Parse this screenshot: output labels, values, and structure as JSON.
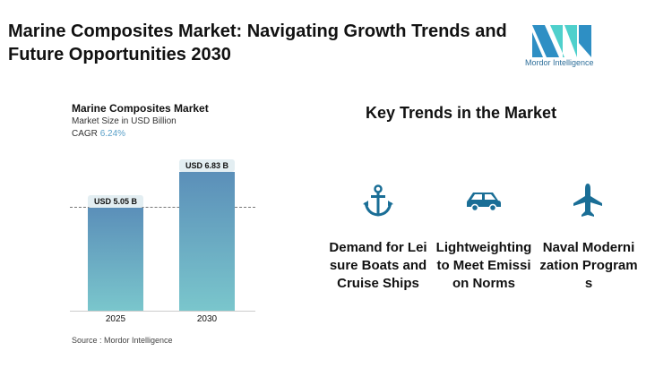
{
  "title": "Marine Composites Market: Navigating Growth Trends and Future Opportunities 2030",
  "logo": {
    "text": "Mordor Intelligence"
  },
  "chart_data": {
    "type": "bar",
    "title": "Marine Composites Market",
    "subtitle": "Market Size in USD Billion",
    "cagr_label": "CAGR",
    "cagr_value": "6.24%",
    "categories": [
      "2025",
      "2030"
    ],
    "values": [
      5.05,
      6.83
    ],
    "data_labels": [
      "USD 5.05 B",
      "USD 6.83 B"
    ],
    "ylim": [
      0,
      7.6
    ],
    "colors": [
      "#5b8fb9",
      "#7ac6cc"
    ]
  },
  "source": "Source : Mordor Intelligence",
  "trends": {
    "heading": "Key Trends in the Market",
    "items": [
      {
        "icon": "anchor-icon",
        "label": "Demand for Leisure Boats and Cruise Ships"
      },
      {
        "icon": "car-icon",
        "label": "Lightweighting to Meet Emission Norms"
      },
      {
        "icon": "airplane-icon",
        "label": "Naval Modernization Programs"
      }
    ]
  }
}
